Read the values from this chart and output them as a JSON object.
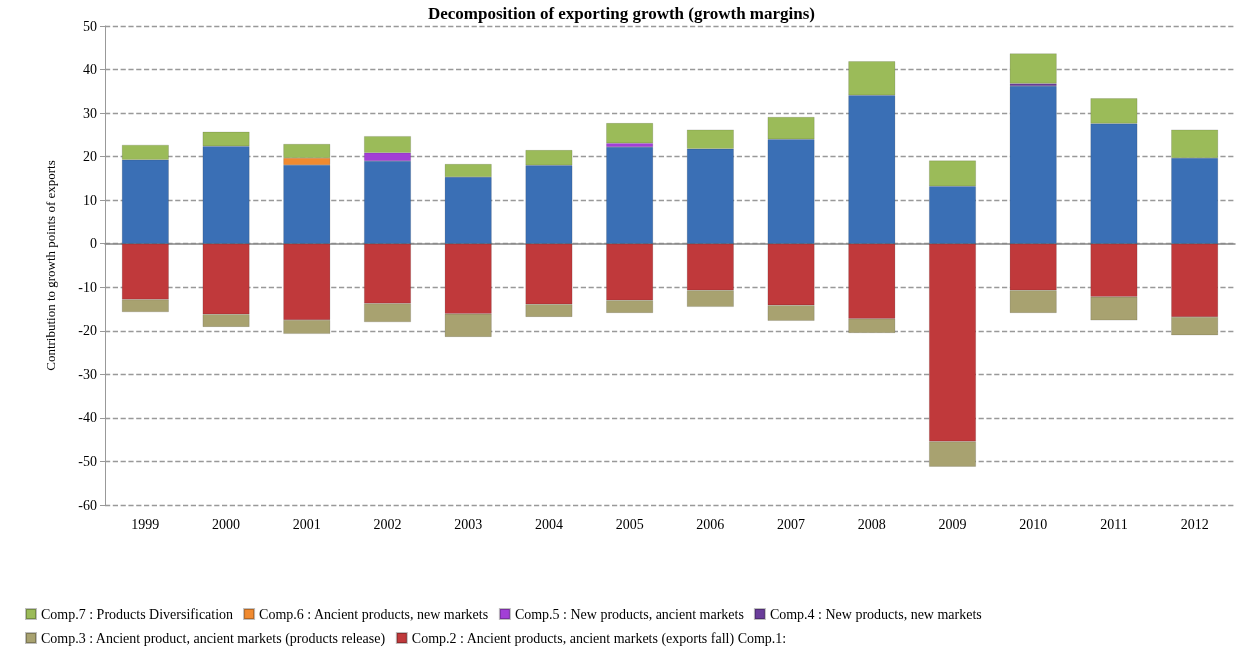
{
  "chart_data": {
    "type": "bar",
    "stacked": true,
    "title": "Decomposition of exporting growth (growth margins)",
    "ylabel": "Contribution to growth points of exports",
    "categories": [
      "1999",
      "2000",
      "2001",
      "2002",
      "2003",
      "2004",
      "2005",
      "2006",
      "2007",
      "2008",
      "2009",
      "2010",
      "2011",
      "2012"
    ],
    "series": [
      {
        "color": "#3a6fb5",
        "values": [
          19.3,
          22.4,
          18.1,
          19.0,
          15.3,
          18.0,
          22.2,
          21.8,
          24.0,
          34.1,
          13.2,
          36.2,
          27.6,
          19.7
        ]
      },
      {
        "name": "Comp.2 : Ancient products, ancient markets (exports fall) Comp.1:",
        "color": "#c0393b",
        "values": [
          -12.8,
          -16.2,
          -17.5,
          -13.7,
          -16.1,
          -13.9,
          -13.0,
          -10.7,
          -14.1,
          -17.2,
          -45.4,
          -10.7,
          -12.2,
          -16.8
        ]
      },
      {
        "name": "Comp.3 : Ancient product, ancient markets (products release)",
        "color": "#a8a270",
        "values": [
          -2.9,
          -2.9,
          -3.2,
          -4.3,
          -5.3,
          -2.9,
          -2.9,
          -3.8,
          -3.6,
          -3.3,
          -5.8,
          -5.2,
          -5.4,
          -4.2
        ]
      },
      {
        "name": "Comp.4 : New products, new markets",
        "color": "#6a3d9a",
        "values": [
          null,
          null,
          null,
          null,
          null,
          null,
          null,
          null,
          null,
          null,
          null,
          0.6,
          null,
          null
        ]
      },
      {
        "name": "Comp.5 : New products, ancient markets",
        "color": "#a23fd6",
        "values": [
          null,
          null,
          null,
          1.9,
          null,
          null,
          0.9,
          null,
          null,
          null,
          null,
          null,
          null,
          null
        ]
      },
      {
        "name": "Comp.6 : Ancient products, new markets",
        "color": "#f08a30",
        "values": [
          null,
          null,
          1.6,
          null,
          null,
          null,
          null,
          null,
          null,
          null,
          null,
          null,
          null,
          null
        ]
      },
      {
        "name": "Comp.7 : Products Diversification",
        "color": "#9bbb59",
        "values": [
          3.4,
          3.3,
          3.2,
          3.8,
          3.0,
          3.5,
          4.6,
          4.4,
          5.1,
          7.8,
          5.9,
          6.9,
          5.8,
          6.5
        ]
      }
    ],
    "ylim": [
      -60,
      50
    ],
    "yticks": [
      -60,
      -50,
      -40,
      -30,
      -20,
      -10,
      0,
      10,
      20,
      30,
      40,
      50
    ],
    "grid": "y",
    "legend": "bottom"
  }
}
